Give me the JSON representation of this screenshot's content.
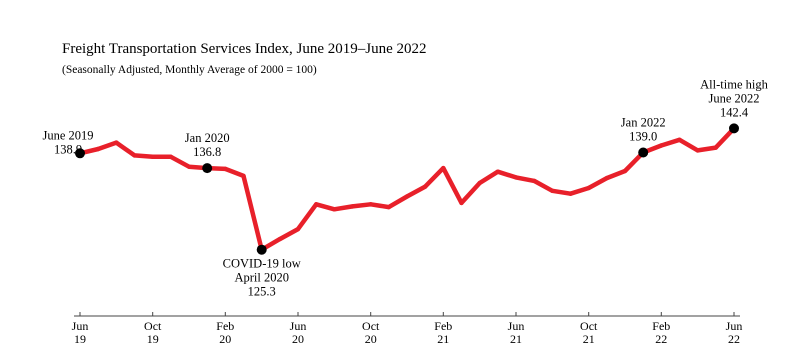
{
  "chart_data": {
    "type": "line",
    "title": "Freight Transportation Services Index, June 2019–June 2022",
    "subtitle": "(Seasonally Adjusted, Monthly Average of 2000 = 100)",
    "xlabel": "",
    "ylabel": "",
    "ylim": [
      123,
      145
    ],
    "grid": false,
    "legend": "none",
    "series": [
      {
        "color": "#e8202a",
        "values": [
          {
            "x": "2019-06",
            "y": 138.9
          },
          {
            "x": "2019-07",
            "y": 139.5
          },
          {
            "x": "2019-08",
            "y": 140.4
          },
          {
            "x": "2019-09",
            "y": 138.6
          },
          {
            "x": "2019-10",
            "y": 138.4
          },
          {
            "x": "2019-11",
            "y": 138.4
          },
          {
            "x": "2019-12",
            "y": 137.0
          },
          {
            "x": "2020-01",
            "y": 136.8
          },
          {
            "x": "2020-02",
            "y": 136.7
          },
          {
            "x": "2020-03",
            "y": 135.7
          },
          {
            "x": "2020-04",
            "y": 125.3
          },
          {
            "x": "2020-05",
            "y": 126.8
          },
          {
            "x": "2020-06",
            "y": 128.2
          },
          {
            "x": "2020-07",
            "y": 131.7
          },
          {
            "x": "2020-08",
            "y": 131.0
          },
          {
            "x": "2020-09",
            "y": 131.4
          },
          {
            "x": "2020-10",
            "y": 131.7
          },
          {
            "x": "2020-11",
            "y": 131.3
          },
          {
            "x": "2020-12",
            "y": 132.8
          },
          {
            "x": "2021-01",
            "y": 134.2
          },
          {
            "x": "2021-02",
            "y": 136.8
          },
          {
            "x": "2021-03",
            "y": 131.9
          },
          {
            "x": "2021-04",
            "y": 134.7
          },
          {
            "x": "2021-05",
            "y": 136.3
          },
          {
            "x": "2021-06",
            "y": 135.5
          },
          {
            "x": "2021-07",
            "y": 135.0
          },
          {
            "x": "2021-08",
            "y": 133.6
          },
          {
            "x": "2021-09",
            "y": 133.2
          },
          {
            "x": "2021-10",
            "y": 134.0
          },
          {
            "x": "2021-11",
            "y": 135.4
          },
          {
            "x": "2021-12",
            "y": 136.4
          },
          {
            "x": "2022-01",
            "y": 139.0
          },
          {
            "x": "2022-02",
            "y": 140.0
          },
          {
            "x": "2022-03",
            "y": 140.8
          },
          {
            "x": "2022-04",
            "y": 139.3
          },
          {
            "x": "2022-05",
            "y": 139.7
          },
          {
            "x": "2022-06",
            "y": 142.4
          }
        ]
      }
    ],
    "highlights": [
      {
        "x": "2019-06",
        "y": 138.9,
        "lines": [
          "June 2019",
          "138.9"
        ],
        "placement": "left"
      },
      {
        "x": "2020-01",
        "y": 136.8,
        "lines": [
          "Jan 2020",
          "136.8"
        ],
        "placement": "above"
      },
      {
        "x": "2020-04",
        "y": 125.3,
        "lines": [
          "COVID-19 low",
          "April 2020",
          "125.3"
        ],
        "placement": "below"
      },
      {
        "x": "2022-01",
        "y": 139.0,
        "lines": [
          "Jan 2022",
          "139.0"
        ],
        "placement": "above"
      },
      {
        "x": "2022-06",
        "y": 142.4,
        "lines": [
          "All-time high",
          "June 2022",
          "142.4"
        ],
        "placement": "above"
      }
    ],
    "x_ticks": [
      {
        "x": "2019-06",
        "label": [
          "Jun",
          "19"
        ]
      },
      {
        "x": "2019-10",
        "label": [
          "Oct",
          "19"
        ]
      },
      {
        "x": "2020-02",
        "label": [
          "Feb",
          "20"
        ]
      },
      {
        "x": "2020-06",
        "label": [
          "Jun",
          "20"
        ]
      },
      {
        "x": "2020-10",
        "label": [
          "Oct",
          "20"
        ]
      },
      {
        "x": "2021-02",
        "label": [
          "Feb",
          "21"
        ]
      },
      {
        "x": "2021-06",
        "label": [
          "Jun",
          "21"
        ]
      },
      {
        "x": "2021-10",
        "label": [
          "Oct",
          "21"
        ]
      },
      {
        "x": "2022-02",
        "label": [
          "Feb",
          "22"
        ]
      },
      {
        "x": "2022-06",
        "label": [
          "Jun",
          "22"
        ]
      }
    ]
  }
}
